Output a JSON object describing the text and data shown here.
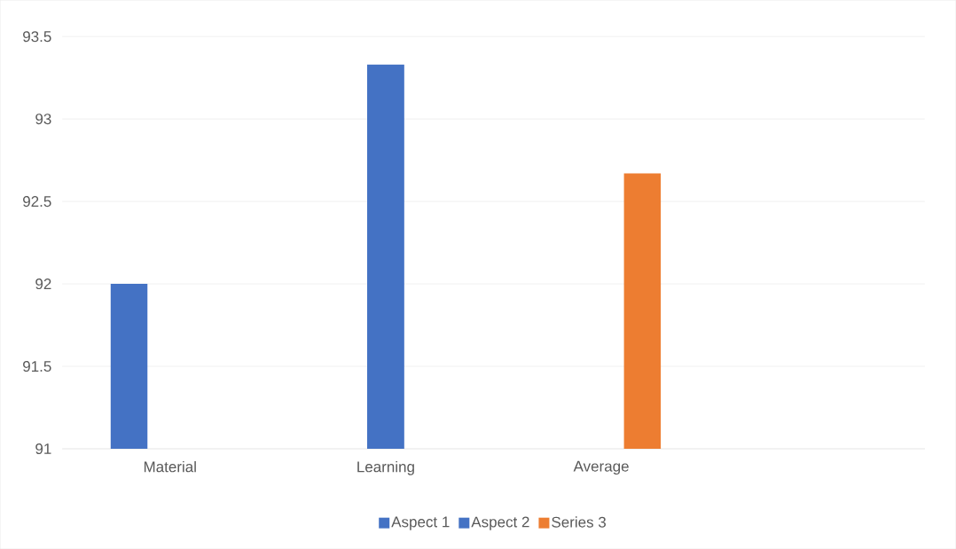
{
  "chart_data": {
    "type": "bar",
    "categories": [
      "Material",
      "Learning",
      "Average",
      null
    ],
    "series": [
      {
        "name": "Aspect 1",
        "color": "#4472c4",
        "values": [
          92,
          null,
          null,
          null
        ]
      },
      {
        "name": "Aspect 2",
        "color": "#4472c4",
        "values": [
          null,
          93.33,
          null,
          null
        ]
      },
      {
        "name": "Series 3",
        "color": "#ed7d31",
        "values": [
          null,
          null,
          92.67,
          null
        ]
      }
    ],
    "ylim": [
      91,
      93.5
    ],
    "yticks": [
      91,
      91.5,
      92,
      92.5,
      93,
      93.5
    ],
    "grid": "y",
    "legend": "bottom"
  }
}
